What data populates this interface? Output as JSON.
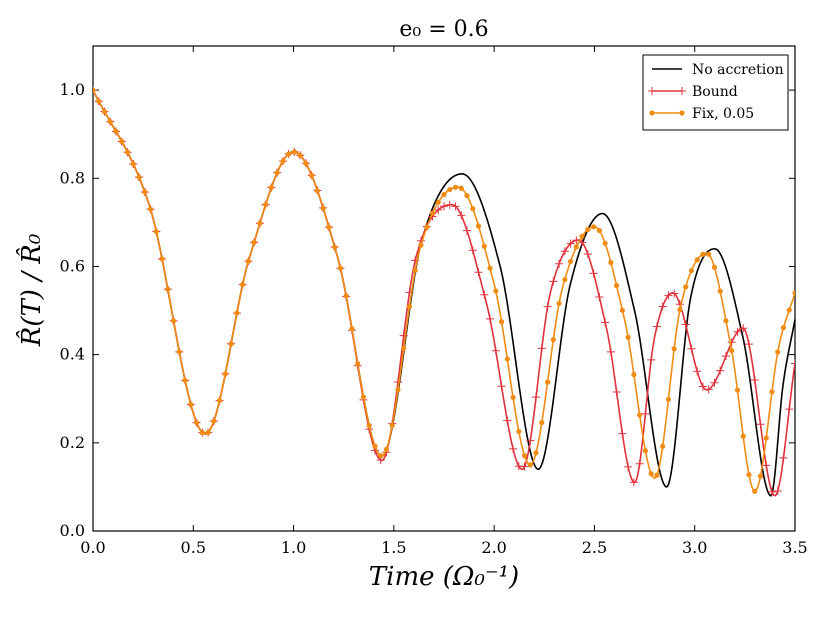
{
  "chart_data": {
    "type": "line",
    "title": "e₀ = 0.6",
    "xlabel": "Time (Ω₀⁻¹)",
    "ylabel": "R̂(T) / R̂₀",
    "xlim": [
      0.0,
      3.5
    ],
    "ylim": [
      0.0,
      1.1
    ],
    "xticks": [
      "0.0",
      "0.5",
      "1.0",
      "1.5",
      "2.0",
      "2.5",
      "3.0",
      "3.5"
    ],
    "xtick_values": [
      0.0,
      0.5,
      1.0,
      1.5,
      2.0,
      2.5,
      3.0,
      3.5
    ],
    "yticks": [
      "0.0",
      "0.2",
      "0.4",
      "0.6",
      "0.8",
      "1.0"
    ],
    "ytick_values": [
      0.0,
      0.2,
      0.4,
      0.6,
      0.8,
      1.0
    ],
    "grid": false,
    "legend_position": "top-right",
    "series": [
      {
        "name": "No accretion",
        "color": "#000000",
        "marker": "none",
        "x": [
          0.0,
          0.28,
          0.56,
          0.78,
          1.0,
          1.22,
          1.44,
          1.64,
          1.84,
          2.03,
          2.22,
          2.38,
          2.54,
          2.7,
          2.86,
          2.98,
          3.1,
          3.24,
          3.38,
          3.44,
          3.5
        ],
        "y": [
          1.0,
          0.74,
          0.22,
          0.62,
          0.86,
          0.62,
          0.17,
          0.66,
          0.81,
          0.6,
          0.14,
          0.56,
          0.72,
          0.5,
          0.1,
          0.53,
          0.64,
          0.44,
          0.08,
          0.33,
          0.48
        ]
      },
      {
        "name": "Bound",
        "color": "#e0323c",
        "marker": "plus",
        "x": [
          0.0,
          0.28,
          0.56,
          0.78,
          1.0,
          1.22,
          1.44,
          1.61,
          1.79,
          1.96,
          2.14,
          2.28,
          2.42,
          2.56,
          2.7,
          2.8,
          2.89,
          3.06,
          3.24,
          3.4,
          3.5
        ],
        "y": [
          1.0,
          0.74,
          0.22,
          0.62,
          0.86,
          0.62,
          0.16,
          0.62,
          0.74,
          0.52,
          0.14,
          0.54,
          0.66,
          0.46,
          0.11,
          0.44,
          0.54,
          0.32,
          0.46,
          0.08,
          0.38
        ]
      },
      {
        "name": "Fix, 0.05",
        "color": "#f08c14",
        "marker": "dot",
        "x": [
          0.0,
          0.28,
          0.56,
          0.78,
          1.0,
          1.22,
          1.44,
          1.63,
          1.82,
          2.0,
          2.18,
          2.34,
          2.5,
          2.65,
          2.8,
          2.93,
          3.06,
          3.18,
          3.3,
          3.42,
          3.5
        ],
        "y": [
          1.0,
          0.74,
          0.22,
          0.62,
          0.86,
          0.62,
          0.17,
          0.64,
          0.78,
          0.56,
          0.15,
          0.55,
          0.69,
          0.48,
          0.12,
          0.51,
          0.63,
          0.42,
          0.09,
          0.42,
          0.54
        ]
      }
    ]
  }
}
